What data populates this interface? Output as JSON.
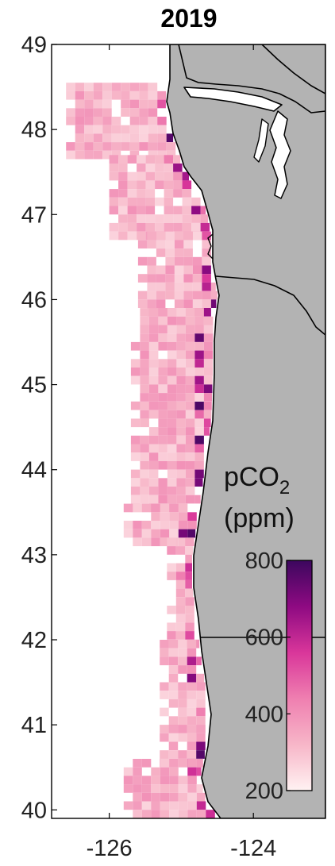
{
  "title": "2019",
  "map": {
    "lon_range": [
      -126.8,
      -123.0
    ],
    "lat_range": [
      39.9,
      49.0
    ],
    "x_ticks": [
      {
        "value": -126,
        "label": "-126"
      },
      {
        "value": -124,
        "label": "-124"
      }
    ],
    "y_ticks": [
      {
        "value": 49,
        "label": "49"
      },
      {
        "value": 48,
        "label": "48"
      },
      {
        "value": 47,
        "label": "47"
      },
      {
        "value": 46,
        "label": "46"
      },
      {
        "value": 45,
        "label": "45"
      },
      {
        "value": 44,
        "label": "44"
      },
      {
        "value": 43,
        "label": "43"
      },
      {
        "value": 42,
        "label": "42"
      },
      {
        "value": 41,
        "label": "41"
      },
      {
        "value": 40,
        "label": "40"
      }
    ],
    "land_color": "#b3b3b3",
    "ocean_color": "#ffffff",
    "coastline_color": "#000000",
    "cell_size_deg": 0.1
  },
  "colorbar": {
    "title_main": "pCO",
    "title_sub": "2",
    "units": "(ppm)",
    "min": 200,
    "max": 800,
    "tick_values": [
      800,
      600,
      400,
      200
    ],
    "tick_labels": [
      "800",
      "600",
      "400",
      "200"
    ],
    "colors": [
      "#fff2f2",
      "#f7b6c8",
      "#ef7fb0",
      "#d9369a",
      "#8e0a82",
      "#3c075e"
    ]
  }
}
